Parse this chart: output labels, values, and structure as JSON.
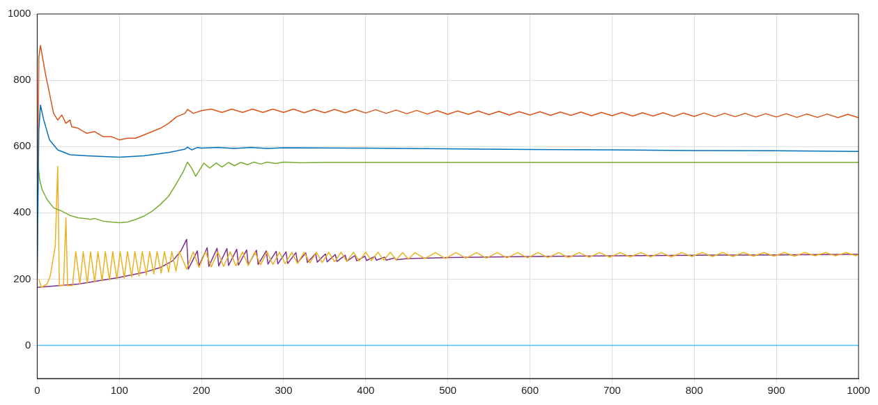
{
  "chart_data": {
    "type": "line",
    "xlim": [
      0,
      1000
    ],
    "ylim": [
      -100,
      1000
    ],
    "xticks": [
      0,
      100,
      200,
      300,
      400,
      500,
      600,
      700,
      800,
      900,
      1000
    ],
    "yticks": [
      0,
      200,
      400,
      600,
      800,
      1000
    ],
    "grid": true,
    "legend": false,
    "series": [
      {
        "color": "#4dbeee",
        "x": [
          0,
          1000
        ],
        "values": [
          0,
          0
        ]
      },
      {
        "color": "#0072bd",
        "x": [
          0,
          2,
          4,
          8,
          15,
          25,
          40,
          60,
          100,
          130,
          160,
          180,
          183,
          188,
          195,
          200,
          220,
          240,
          260,
          280,
          300,
          400,
          500,
          600,
          700,
          800,
          900,
          1000
        ],
        "values": [
          200,
          650,
          725,
          680,
          620,
          590,
          575,
          572,
          568,
          572,
          582,
          592,
          598,
          590,
          597,
          595,
          597,
          594,
          597,
          594,
          596,
          595,
          593,
          591,
          590,
          588,
          587,
          585
        ]
      },
      {
        "color": "#d95319",
        "x": [
          0,
          2,
          4,
          10,
          20,
          25,
          30,
          35,
          40,
          42,
          50,
          60,
          70,
          80,
          90,
          100,
          110,
          120,
          130,
          140,
          150,
          160,
          170,
          180,
          183,
          190,
          200,
          212,
          225,
          237,
          250,
          262,
          275,
          287,
          300,
          312,
          325,
          337,
          350,
          362,
          375,
          387,
          400,
          412,
          425,
          437,
          450,
          462,
          475,
          487,
          500,
          512,
          525,
          537,
          550,
          562,
          575,
          587,
          600,
          612,
          625,
          637,
          650,
          662,
          675,
          687,
          700,
          712,
          725,
          737,
          750,
          762,
          775,
          787,
          800,
          812,
          825,
          837,
          850,
          862,
          875,
          887,
          900,
          912,
          925,
          937,
          950,
          962,
          975,
          987,
          1000
        ],
        "values": [
          200,
          870,
          905,
          820,
          700,
          680,
          695,
          670,
          680,
          660,
          655,
          640,
          645,
          630,
          630,
          620,
          625,
          625,
          635,
          645,
          655,
          670,
          690,
          700,
          712,
          700,
          708,
          713,
          703,
          713,
          703,
          713,
          703,
          713,
          703,
          713,
          702,
          712,
          702,
          712,
          702,
          712,
          701,
          711,
          700,
          710,
          699,
          709,
          698,
          708,
          697,
          707,
          697,
          707,
          696,
          706,
          695,
          705,
          695,
          705,
          694,
          704,
          694,
          704,
          693,
          703,
          693,
          703,
          692,
          702,
          692,
          702,
          691,
          701,
          691,
          701,
          690,
          700,
          690,
          700,
          689,
          699,
          689,
          699,
          688,
          698,
          688,
          698,
          687,
          697,
          687
        ]
      },
      {
        "color": "#77ac30",
        "x": [
          0,
          3,
          6,
          12,
          20,
          25,
          30,
          40,
          50,
          60,
          65,
          70,
          80,
          90,
          100,
          110,
          120,
          130,
          140,
          150,
          160,
          170,
          178,
          183,
          188,
          193,
          198,
          203,
          210,
          218,
          225,
          233,
          240,
          248,
          256,
          264,
          272,
          280,
          290,
          300,
          320,
          350,
          400,
          500,
          1000
        ],
        "values": [
          570,
          500,
          470,
          440,
          415,
          410,
          405,
          392,
          385,
          382,
          380,
          383,
          375,
          372,
          370,
          372,
          380,
          390,
          405,
          425,
          450,
          490,
          525,
          553,
          535,
          510,
          530,
          550,
          535,
          550,
          538,
          552,
          542,
          552,
          545,
          553,
          547,
          553,
          549,
          553,
          551,
          552,
          552,
          552,
          552
        ]
      },
      {
        "color": "#edb120",
        "x": [
          2,
          5,
          12,
          16,
          22,
          25,
          27,
          32,
          35,
          37,
          43,
          47,
          52,
          56,
          61,
          65,
          70,
          74,
          79,
          83,
          88,
          92,
          97,
          101,
          106,
          110,
          115,
          119,
          124,
          128,
          133,
          137,
          142,
          146,
          151,
          155,
          160,
          164,
          169,
          173,
          182,
          190,
          197,
          205,
          212,
          220,
          227,
          235,
          242,
          250,
          257,
          265,
          272,
          280,
          287,
          295,
          302,
          310,
          317,
          325,
          332,
          340,
          347,
          355,
          362,
          370,
          377,
          385,
          392,
          400,
          407,
          415,
          422,
          430,
          437,
          445,
          452,
          460,
          472,
          485,
          497,
          510,
          522,
          535,
          547,
          560,
          572,
          585,
          597,
          610,
          622,
          635,
          647,
          660,
          672,
          685,
          697,
          710,
          722,
          735,
          747,
          760,
          772,
          785,
          797,
          810,
          822,
          835,
          847,
          860,
          872,
          885,
          897,
          910,
          922,
          935,
          947,
          960,
          972,
          985,
          997,
          1000
        ],
        "values": [
          200,
          175,
          185,
          210,
          300,
          540,
          180,
          180,
          385,
          180,
          180,
          283,
          185,
          283,
          188,
          283,
          191,
          283,
          194,
          283,
          197,
          283,
          200,
          283,
          203,
          283,
          206,
          283,
          209,
          283,
          212,
          283,
          215,
          283,
          218,
          283,
          221,
          283,
          224,
          283,
          230,
          282,
          235,
          282,
          237,
          282,
          238,
          282,
          240,
          282,
          241,
          282,
          243,
          282,
          244,
          281,
          246,
          281,
          247,
          281,
          249,
          281,
          250,
          281,
          252,
          281,
          253,
          281,
          255,
          281,
          256,
          281,
          257,
          281,
          258,
          280,
          260,
          280,
          262,
          280,
          262,
          280,
          263,
          280,
          263,
          280,
          264,
          280,
          264,
          280,
          265,
          280,
          265,
          280,
          266,
          280,
          266,
          280,
          267,
          280,
          267,
          280,
          267,
          280,
          268,
          280,
          268,
          280,
          268,
          280,
          269,
          280,
          269,
          280,
          269,
          280,
          270,
          280,
          270,
          280,
          270,
          275
        ]
      },
      {
        "color": "#7e2f8e",
        "x": [
          0,
          50,
          100,
          130,
          150,
          165,
          175,
          182,
          184,
          190,
          195,
          197,
          207,
          209,
          219,
          221,
          231,
          233,
          243,
          245,
          255,
          257,
          267,
          269,
          279,
          281,
          291,
          293,
          303,
          305,
          315,
          317,
          327,
          329,
          339,
          341,
          351,
          353,
          363,
          365,
          375,
          377,
          387,
          389,
          399,
          401,
          411,
          413,
          423,
          425,
          435,
          437,
          450,
          500,
          600,
          700,
          800,
          900,
          1000
        ],
        "values": [
          175,
          185,
          205,
          220,
          235,
          255,
          285,
          320,
          230,
          260,
          285,
          240,
          295,
          238,
          293,
          240,
          292,
          241,
          290,
          242,
          288,
          243,
          287,
          244,
          285,
          245,
          284,
          246,
          282,
          247,
          280,
          249,
          279,
          250,
          277,
          251,
          276,
          252,
          274,
          253,
          272,
          254,
          271,
          255,
          269,
          256,
          268,
          257,
          266,
          257,
          264,
          258,
          262,
          265,
          268,
          270,
          272,
          273,
          275
        ]
      }
    ]
  }
}
